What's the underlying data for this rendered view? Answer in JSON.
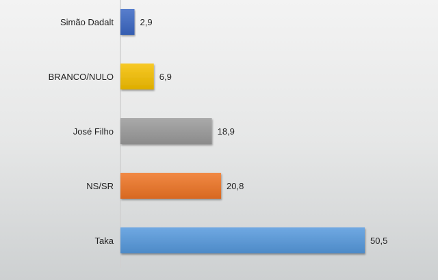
{
  "chart_data": {
    "type": "bar",
    "orientation": "horizontal",
    "categories": [
      "Simão Dadalt",
      "BRANCO/NULO",
      "José Filho",
      "NS/SR",
      "Taka"
    ],
    "values": [
      2.9,
      6.9,
      18.9,
      20.8,
      50.5
    ],
    "data_labels": [
      "2,9",
      "6,9",
      "18,9",
      "20,8",
      "50,5"
    ],
    "colors": [
      "#3b67c4",
      "#f5c000",
      "#9a9a9a",
      "#ef7424",
      "#5599dd"
    ],
    "title": "",
    "xlabel": "",
    "ylabel": "",
    "xlim": [
      0,
      60
    ],
    "grid": false,
    "legend": "none"
  }
}
